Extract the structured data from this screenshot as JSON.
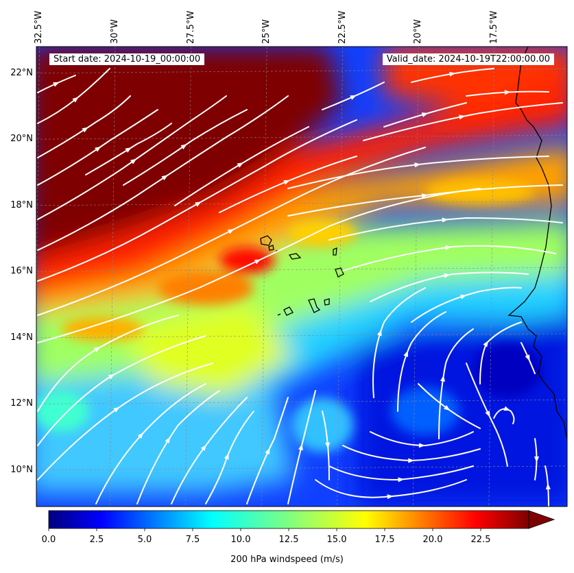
{
  "header": {
    "start_date": "Start date: 2024-10-19_00:00:00",
    "valid_date": "Valid_date: 2024-10-19T22:00:00.00"
  },
  "axes": {
    "longitude_labels": [
      "32.5°W",
      "30°W",
      "27.5°W",
      "25°W",
      "22.5°W",
      "20°W",
      "17.5°W"
    ],
    "longitude_values": [
      -32.5,
      -30,
      -27.5,
      -25,
      -22.5,
      -20,
      -17.5
    ],
    "latitude_labels": [
      "22°N",
      "20°N",
      "18°N",
      "16°N",
      "14°N",
      "12°N",
      "10°N"
    ],
    "latitude_values": [
      22,
      20,
      18,
      16,
      14,
      12,
      10
    ],
    "extent": {
      "lon_min": -32.6,
      "lon_max": -15.1,
      "lat_min": 8.9,
      "lat_max": 22.8
    }
  },
  "colorbar": {
    "title": "200 hPa windspeed (m/s)",
    "tick_labels": [
      "0.0",
      "2.5",
      "5.0",
      "7.5",
      "10.0",
      "12.5",
      "15.0",
      "17.5",
      "20.0",
      "22.5"
    ],
    "tick_values": [
      0,
      2.5,
      5,
      7.5,
      10,
      12.5,
      15,
      17.5,
      20,
      22.5
    ],
    "range": [
      0,
      25
    ],
    "extend": "max",
    "colormap": "jet"
  },
  "field": {
    "variable": "200 hPa windspeed",
    "units": "m/s"
  },
  "colors": {
    "streamline": "#ffffff",
    "coastline": "#000000"
  }
}
